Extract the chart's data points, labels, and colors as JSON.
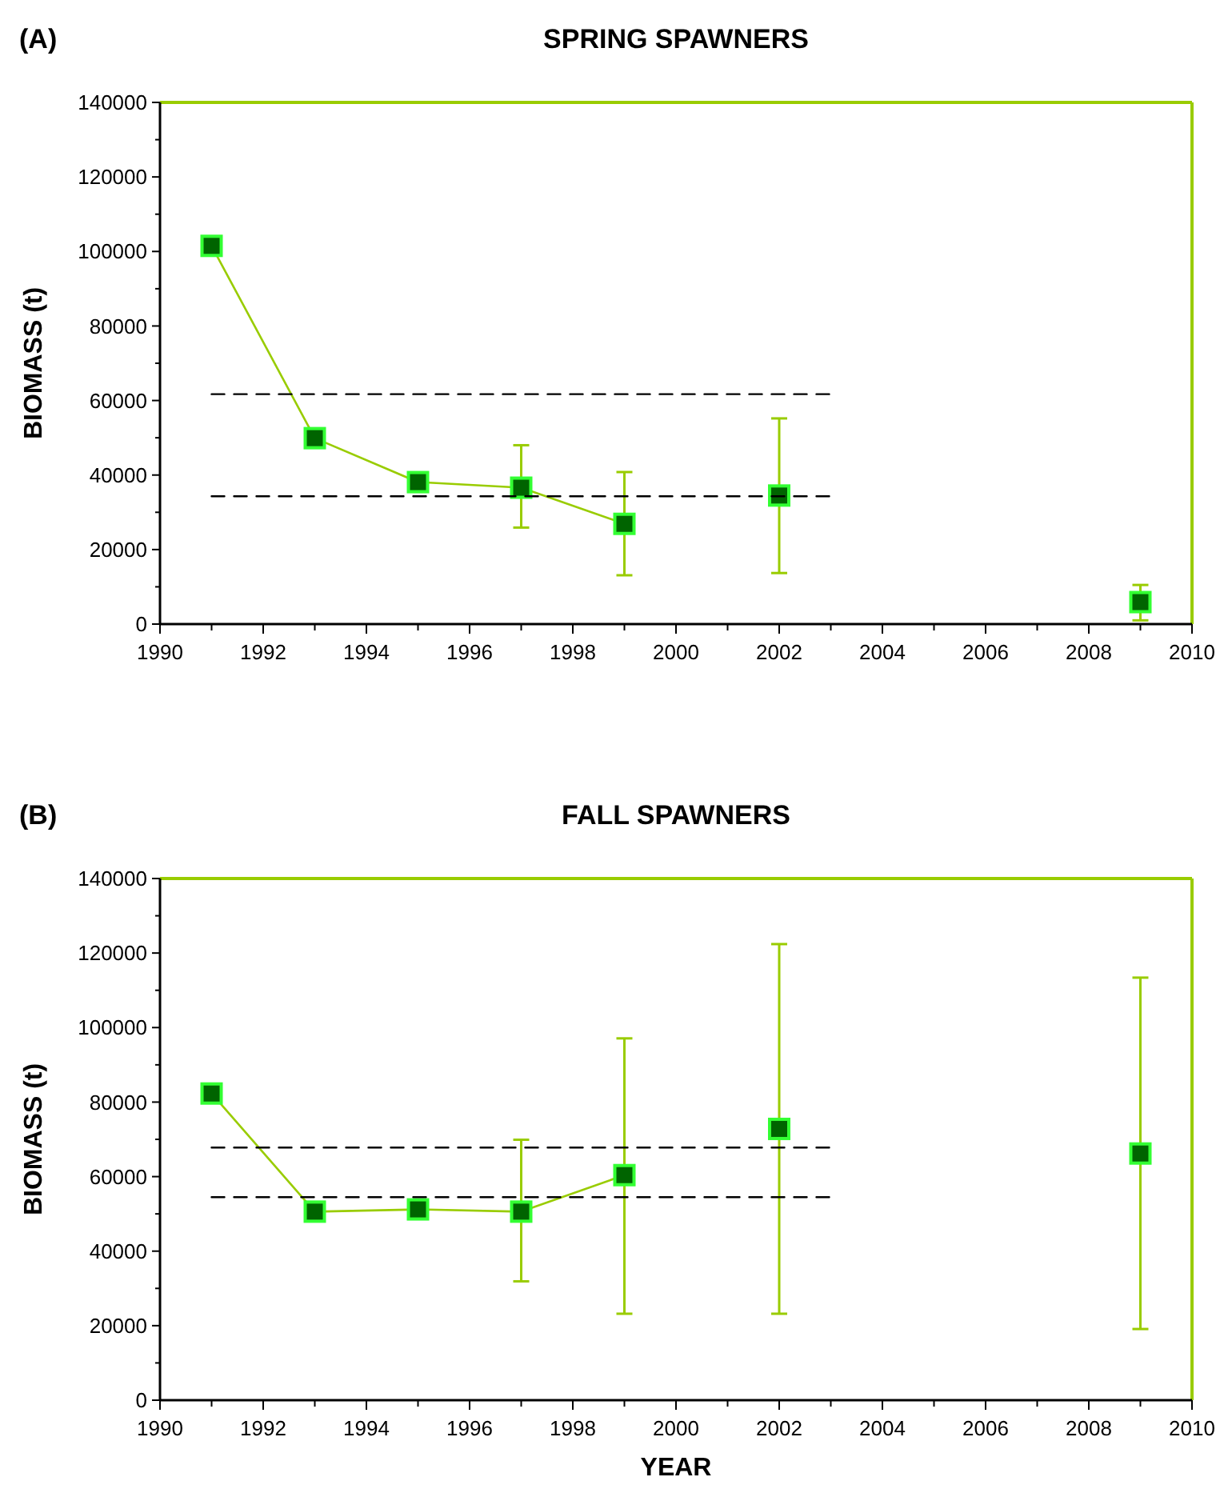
{
  "chart_data": [
    {
      "type": "line",
      "title": "SPRING SPAWNERS",
      "ylabel": "BIOMASS (t)",
      "annotations": [
        "(A)"
      ],
      "marker": "square",
      "xlim": [
        1990,
        2010
      ],
      "ylim": [
        0,
        140000
      ],
      "xticks": [
        1990,
        {
          "value": 1991,
          "label": null
        },
        1992,
        {
          "value": 1993,
          "label": null
        },
        1994,
        {
          "value": 1995,
          "label": null
        },
        1996,
        {
          "value": 1997,
          "label": null
        },
        1998,
        {
          "value": 1999,
          "label": null
        },
        2000,
        {
          "value": 2001,
          "label": null
        },
        2002,
        {
          "value": 2003,
          "label": null
        },
        2004,
        {
          "value": 2005,
          "label": null
        },
        2006,
        {
          "value": 2007,
          "label": null
        },
        2008,
        {
          "value": 2009,
          "label": null
        },
        2010
      ],
      "yticks": [
        0,
        {
          "value": 10000,
          "label": null
        },
        20000,
        {
          "value": 30000,
          "label": null
        },
        40000,
        {
          "value": 50000,
          "label": null
        },
        60000,
        {
          "value": 70000,
          "label": null
        },
        80000,
        {
          "value": 90000,
          "label": null
        },
        100000,
        {
          "value": 110000,
          "label": null
        },
        120000,
        {
          "value": 130000,
          "label": null
        },
        140000
      ],
      "series": [
        {
          "color": "#99cc00",
          "x": [
            1991,
            1993,
            1995,
            1997,
            1999
          ],
          "values": [
            101500,
            49900,
            38100,
            36600,
            26900
          ],
          "errors": [
            null,
            null,
            null,
            [
              25900,
              48000
            ],
            [
              13100,
              40800
            ]
          ]
        },
        {
          "type": "scatter",
          "color": "#006400",
          "x": [
            2002,
            2009
          ],
          "values": [
            34500,
            5900
          ],
          "errors": [
            [
              13700,
              55200
            ],
            [
              1000,
              10500
            ]
          ]
        },
        {
          "type": "line",
          "color": "#000000",
          "line_style": "dashed",
          "marker": "none",
          "x": [
            1991,
            2003
          ],
          "values": [
            61700,
            61700
          ]
        },
        {
          "type": "line",
          "color": "#000000",
          "line_style": "dashed",
          "marker": "none",
          "x": [
            1991,
            2003
          ],
          "values": [
            34300,
            34300
          ]
        }
      ]
    },
    {
      "type": "line",
      "title": "FALL SPAWNERS",
      "ylabel": "BIOMASS (t)",
      "xlabel": "YEAR",
      "annotations": [
        "(B)"
      ],
      "marker": "square",
      "xlim": [
        1990,
        2010
      ],
      "ylim": [
        0,
        140000
      ],
      "xticks": [
        1990,
        {
          "value": 1991,
          "label": null
        },
        1992,
        {
          "value": 1993,
          "label": null
        },
        1994,
        {
          "value": 1995,
          "label": null
        },
        1996,
        {
          "value": 1997,
          "label": null
        },
        1998,
        {
          "value": 1999,
          "label": null
        },
        2000,
        {
          "value": 2001,
          "label": null
        },
        2002,
        {
          "value": 2003,
          "label": null
        },
        2004,
        {
          "value": 2005,
          "label": null
        },
        2006,
        {
          "value": 2007,
          "label": null
        },
        2008,
        {
          "value": 2009,
          "label": null
        },
        2010
      ],
      "yticks": [
        0,
        {
          "value": 10000,
          "label": null
        },
        20000,
        {
          "value": 30000,
          "label": null
        },
        40000,
        {
          "value": 50000,
          "label": null
        },
        60000,
        {
          "value": 70000,
          "label": null
        },
        80000,
        {
          "value": 90000,
          "label": null
        },
        100000,
        {
          "value": 110000,
          "label": null
        },
        120000,
        {
          "value": 130000,
          "label": null
        },
        140000
      ],
      "series": [
        {
          "color": "#99cc00",
          "x": [
            1991,
            1993,
            1995,
            1997,
            1999
          ],
          "values": [
            82300,
            50600,
            51200,
            50600,
            60400
          ],
          "errors": [
            null,
            null,
            null,
            [
              31900,
              69900
            ],
            [
              23200,
              97100
            ]
          ]
        },
        {
          "type": "scatter",
          "color": "#006400",
          "x": [
            2002,
            2009
          ],
          "values": [
            72800,
            66200
          ],
          "errors": [
            [
              23200,
              122400
            ],
            [
              19100,
              113400
            ]
          ]
        },
        {
          "type": "line",
          "color": "#000000",
          "line_style": "dashed",
          "marker": "none",
          "x": [
            1991,
            2003
          ],
          "values": [
            67800,
            67800
          ]
        },
        {
          "type": "line",
          "color": "#000000",
          "line_style": "dashed",
          "marker": "none",
          "x": [
            1991,
            2003
          ],
          "values": [
            54500,
            54500
          ]
        }
      ]
    }
  ]
}
